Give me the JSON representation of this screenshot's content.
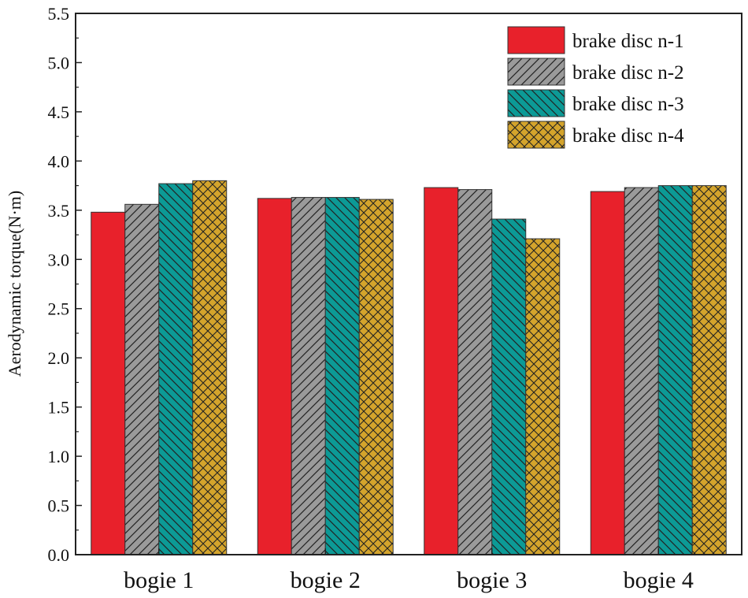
{
  "chart_data": {
    "type": "bar",
    "title": "",
    "xlabel": "",
    "ylabel": "Aerodynamic torque(N·m)",
    "ylim": [
      0,
      5.5
    ],
    "yticks": [
      "0.0",
      "0.5",
      "1.0",
      "1.5",
      "2.0",
      "2.5",
      "3.0",
      "3.5",
      "4.0",
      "4.5",
      "5.0",
      "5.5"
    ],
    "categories": [
      "bogie 1",
      "bogie 2",
      "bogie 3",
      "bogie 4"
    ],
    "legend_position": "top-right",
    "series": [
      {
        "name": "brake disc n-1",
        "color": "#e8212b",
        "pattern": "solid",
        "values": [
          3.48,
          3.62,
          3.73,
          3.69
        ]
      },
      {
        "name": "brake disc n-2",
        "color": "#9a9a9a",
        "pattern": "diagonal-forward",
        "values": [
          3.56,
          3.63,
          3.71,
          3.73
        ]
      },
      {
        "name": "brake disc n-3",
        "color": "#0c9a96",
        "pattern": "diagonal-back",
        "values": [
          3.77,
          3.63,
          3.41,
          3.75
        ]
      },
      {
        "name": "brake disc n-4",
        "color": "#d4a42c",
        "pattern": "crosshatch",
        "values": [
          3.8,
          3.61,
          3.21,
          3.75
        ]
      }
    ]
  }
}
